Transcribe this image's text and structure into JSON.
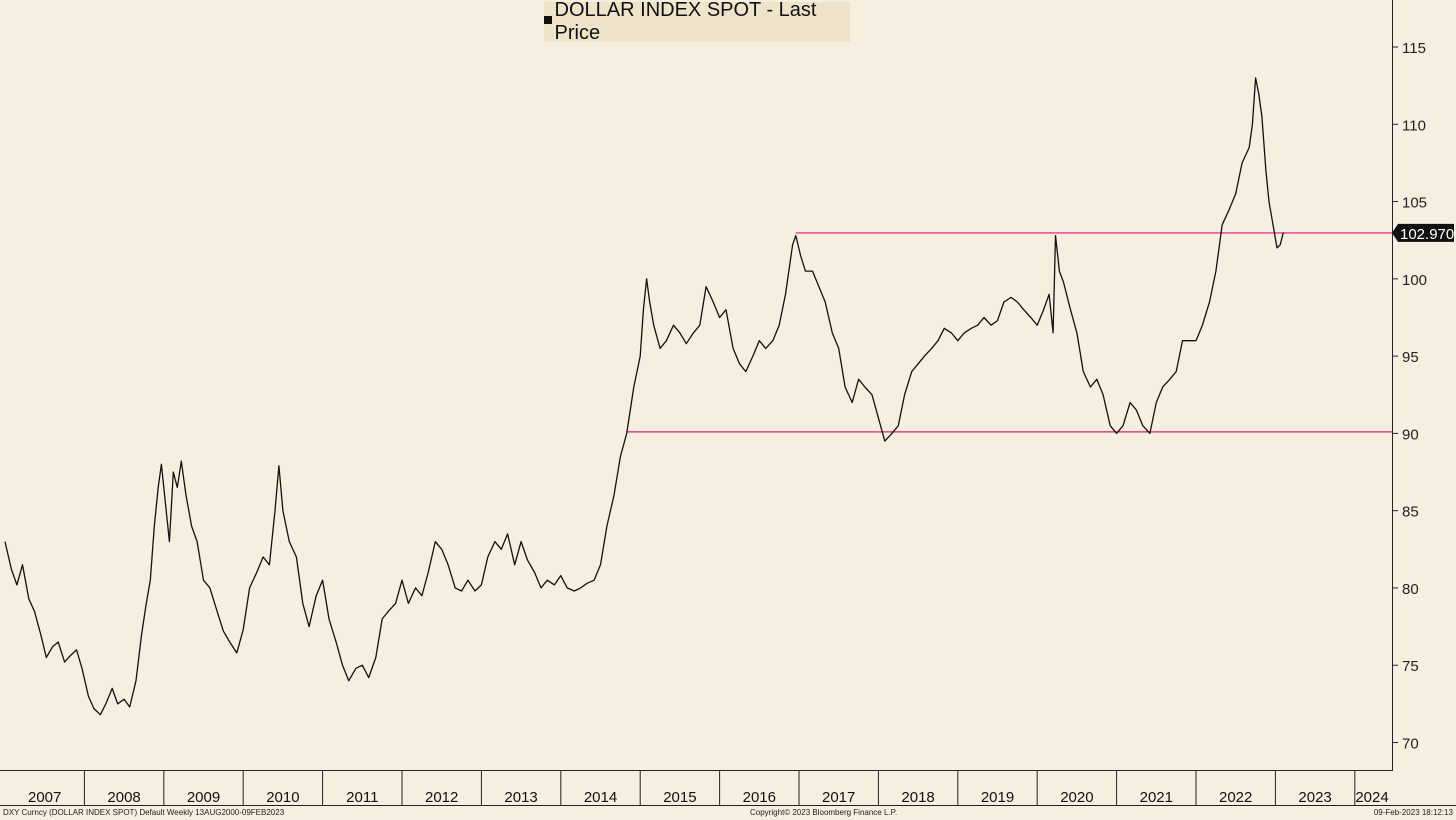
{
  "chart_data": {
    "type": "line",
    "title": "DOLLAR INDEX SPOT - Last Price",
    "legend_placement": "top-center",
    "grid": false,
    "x_categories": [
      "2007",
      "2008",
      "2009",
      "2010",
      "2011",
      "2012",
      "2013",
      "2014",
      "2015",
      "2016",
      "2017",
      "2018",
      "2019",
      "2020",
      "2021",
      "2022",
      "2023",
      "2024"
    ],
    "xlim": [
      2007.0,
      2024.6
    ],
    "ylim": [
      68.5,
      117.5
    ],
    "y_ticks": [
      70,
      75,
      80,
      85,
      90,
      95,
      100,
      105,
      110,
      115
    ],
    "last_price_label": "102.970",
    "series": [
      {
        "name": "DOLLAR INDEX SPOT",
        "color": "#111111",
        "points": [
          [
            2007.0,
            83.0
          ],
          [
            2007.08,
            81.2
          ],
          [
            2007.15,
            80.2
          ],
          [
            2007.22,
            81.5
          ],
          [
            2007.3,
            79.3
          ],
          [
            2007.37,
            78.5
          ],
          [
            2007.45,
            77.0
          ],
          [
            2007.52,
            75.5
          ],
          [
            2007.6,
            76.2
          ],
          [
            2007.67,
            76.5
          ],
          [
            2007.75,
            75.2
          ],
          [
            2007.82,
            75.6
          ],
          [
            2007.9,
            76.0
          ],
          [
            2007.97,
            74.8
          ],
          [
            2008.05,
            73.0
          ],
          [
            2008.12,
            72.2
          ],
          [
            2008.2,
            71.8
          ],
          [
            2008.27,
            72.5
          ],
          [
            2008.35,
            73.5
          ],
          [
            2008.42,
            72.5
          ],
          [
            2008.5,
            72.8
          ],
          [
            2008.57,
            72.3
          ],
          [
            2008.65,
            74.0
          ],
          [
            2008.72,
            77.0
          ],
          [
            2008.78,
            79.0
          ],
          [
            2008.83,
            80.5
          ],
          [
            2008.88,
            84.0
          ],
          [
            2008.93,
            86.5
          ],
          [
            2008.97,
            88.0
          ],
          [
            2009.02,
            85.5
          ],
          [
            2009.07,
            83.0
          ],
          [
            2009.12,
            87.5
          ],
          [
            2009.17,
            86.5
          ],
          [
            2009.22,
            88.2
          ],
          [
            2009.28,
            86.0
          ],
          [
            2009.35,
            84.0
          ],
          [
            2009.42,
            83.0
          ],
          [
            2009.5,
            80.5
          ],
          [
            2009.58,
            80.0
          ],
          [
            2009.67,
            78.5
          ],
          [
            2009.75,
            77.2
          ],
          [
            2009.83,
            76.5
          ],
          [
            2009.92,
            75.8
          ],
          [
            2010.0,
            77.3
          ],
          [
            2010.08,
            80.0
          ],
          [
            2010.17,
            81.0
          ],
          [
            2010.25,
            82.0
          ],
          [
            2010.33,
            81.5
          ],
          [
            2010.4,
            85.0
          ],
          [
            2010.45,
            87.9
          ],
          [
            2010.5,
            85.0
          ],
          [
            2010.58,
            83.0
          ],
          [
            2010.67,
            82.0
          ],
          [
            2010.75,
            79.0
          ],
          [
            2010.83,
            77.5
          ],
          [
            2010.92,
            79.5
          ],
          [
            2011.0,
            80.5
          ],
          [
            2011.08,
            78.0
          ],
          [
            2011.17,
            76.5
          ],
          [
            2011.25,
            75.0
          ],
          [
            2011.33,
            74.0
          ],
          [
            2011.42,
            74.8
          ],
          [
            2011.5,
            75.0
          ],
          [
            2011.58,
            74.2
          ],
          [
            2011.67,
            75.5
          ],
          [
            2011.75,
            78.0
          ],
          [
            2011.83,
            78.5
          ],
          [
            2011.92,
            79.0
          ],
          [
            2012.0,
            80.5
          ],
          [
            2012.08,
            79.0
          ],
          [
            2012.17,
            80.0
          ],
          [
            2012.25,
            79.5
          ],
          [
            2012.33,
            81.0
          ],
          [
            2012.42,
            83.0
          ],
          [
            2012.5,
            82.5
          ],
          [
            2012.58,
            81.5
          ],
          [
            2012.67,
            80.0
          ],
          [
            2012.75,
            79.8
          ],
          [
            2012.83,
            80.5
          ],
          [
            2012.92,
            79.8
          ],
          [
            2013.0,
            80.2
          ],
          [
            2013.08,
            82.0
          ],
          [
            2013.17,
            83.0
          ],
          [
            2013.25,
            82.5
          ],
          [
            2013.33,
            83.5
          ],
          [
            2013.42,
            81.5
          ],
          [
            2013.5,
            83.0
          ],
          [
            2013.58,
            81.8
          ],
          [
            2013.67,
            81.0
          ],
          [
            2013.75,
            80.0
          ],
          [
            2013.83,
            80.5
          ],
          [
            2013.92,
            80.2
          ],
          [
            2014.0,
            80.8
          ],
          [
            2014.08,
            80.0
          ],
          [
            2014.17,
            79.8
          ],
          [
            2014.25,
            80.0
          ],
          [
            2014.33,
            80.3
          ],
          [
            2014.42,
            80.5
          ],
          [
            2014.5,
            81.5
          ],
          [
            2014.58,
            84.0
          ],
          [
            2014.67,
            86.0
          ],
          [
            2014.75,
            88.5
          ],
          [
            2014.83,
            90.0
          ],
          [
            2014.92,
            93.0
          ],
          [
            2015.0,
            95.0
          ],
          [
            2015.04,
            98.0
          ],
          [
            2015.08,
            100.0
          ],
          [
            2015.12,
            98.5
          ],
          [
            2015.17,
            97.0
          ],
          [
            2015.25,
            95.5
          ],
          [
            2015.33,
            96.0
          ],
          [
            2015.42,
            97.0
          ],
          [
            2015.5,
            96.5
          ],
          [
            2015.58,
            95.8
          ],
          [
            2015.67,
            96.5
          ],
          [
            2015.75,
            97.0
          ],
          [
            2015.83,
            99.5
          ],
          [
            2015.92,
            98.5
          ],
          [
            2016.0,
            97.5
          ],
          [
            2016.08,
            98.0
          ],
          [
            2016.17,
            95.5
          ],
          [
            2016.25,
            94.5
          ],
          [
            2016.33,
            94.0
          ],
          [
            2016.42,
            95.0
          ],
          [
            2016.5,
            96.0
          ],
          [
            2016.58,
            95.5
          ],
          [
            2016.67,
            96.0
          ],
          [
            2016.75,
            97.0
          ],
          [
            2016.83,
            99.0
          ],
          [
            2016.92,
            102.2
          ],
          [
            2016.96,
            102.8
          ],
          [
            2017.02,
            101.5
          ],
          [
            2017.08,
            100.5
          ],
          [
            2017.17,
            100.5
          ],
          [
            2017.25,
            99.5
          ],
          [
            2017.33,
            98.5
          ],
          [
            2017.42,
            96.5
          ],
          [
            2017.5,
            95.5
          ],
          [
            2017.58,
            93.0
          ],
          [
            2017.67,
            92.0
          ],
          [
            2017.75,
            93.5
          ],
          [
            2017.83,
            93.0
          ],
          [
            2017.92,
            92.5
          ],
          [
            2018.0,
            91.0
          ],
          [
            2018.08,
            89.5
          ],
          [
            2018.17,
            90.0
          ],
          [
            2018.25,
            90.5
          ],
          [
            2018.33,
            92.5
          ],
          [
            2018.42,
            94.0
          ],
          [
            2018.5,
            94.5
          ],
          [
            2018.58,
            95.0
          ],
          [
            2018.67,
            95.5
          ],
          [
            2018.75,
            96.0
          ],
          [
            2018.83,
            96.8
          ],
          [
            2018.92,
            96.5
          ],
          [
            2019.0,
            96.0
          ],
          [
            2019.08,
            96.5
          ],
          [
            2019.17,
            96.8
          ],
          [
            2019.25,
            97.0
          ],
          [
            2019.33,
            97.5
          ],
          [
            2019.42,
            97.0
          ],
          [
            2019.5,
            97.3
          ],
          [
            2019.58,
            98.5
          ],
          [
            2019.67,
            98.8
          ],
          [
            2019.75,
            98.5
          ],
          [
            2019.83,
            98.0
          ],
          [
            2019.92,
            97.5
          ],
          [
            2020.0,
            97.0
          ],
          [
            2020.08,
            98.0
          ],
          [
            2020.15,
            99.0
          ],
          [
            2020.2,
            96.5
          ],
          [
            2020.23,
            102.8
          ],
          [
            2020.28,
            100.5
          ],
          [
            2020.33,
            99.8
          ],
          [
            2020.42,
            98.0
          ],
          [
            2020.5,
            96.5
          ],
          [
            2020.58,
            94.0
          ],
          [
            2020.67,
            93.0
          ],
          [
            2020.75,
            93.5
          ],
          [
            2020.83,
            92.5
          ],
          [
            2020.92,
            90.5
          ],
          [
            2021.0,
            90.0
          ],
          [
            2021.08,
            90.5
          ],
          [
            2021.17,
            92.0
          ],
          [
            2021.25,
            91.5
          ],
          [
            2021.33,
            90.5
          ],
          [
            2021.42,
            90.0
          ],
          [
            2021.5,
            92.0
          ],
          [
            2021.58,
            93.0
          ],
          [
            2021.67,
            93.5
          ],
          [
            2021.75,
            94.0
          ],
          [
            2021.83,
            96.0
          ],
          [
            2021.92,
            96.0
          ],
          [
            2022.0,
            96.0
          ],
          [
            2022.08,
            97.0
          ],
          [
            2022.17,
            98.5
          ],
          [
            2022.25,
            100.5
          ],
          [
            2022.33,
            103.5
          ],
          [
            2022.42,
            104.5
          ],
          [
            2022.5,
            105.5
          ],
          [
            2022.58,
            107.5
          ],
          [
            2022.67,
            108.5
          ],
          [
            2022.71,
            110.0
          ],
          [
            2022.75,
            113.0
          ],
          [
            2022.79,
            112.0
          ],
          [
            2022.83,
            110.5
          ],
          [
            2022.88,
            107.0
          ],
          [
            2022.92,
            105.0
          ],
          [
            2022.97,
            103.5
          ],
          [
            2023.02,
            102.0
          ],
          [
            2023.06,
            102.2
          ],
          [
            2023.1,
            103.0
          ]
        ]
      }
    ],
    "reference_lines": [
      {
        "y": 102.97,
        "x_start": 2016.96,
        "x_end": 2024.6,
        "color": "#d81b7a"
      },
      {
        "y": 90.1,
        "x_start": 2014.83,
        "x_end": 2024.6,
        "color": "#d81b7a"
      }
    ]
  },
  "footer": {
    "left": "DXY Curncy (DOLLAR INDEX SPOT) Default  Weekly 13AUG2000-09FEB2023",
    "center": "Copyright© 2023 Bloomberg Finance L.P.",
    "right": "09-Feb-2023 18:12:13"
  },
  "colors": {
    "background": "#f6eedf",
    "line": "#111111",
    "reference": "#d81b7a",
    "legend_bg": "#efe3c9",
    "price_tag_bg": "#111111",
    "price_tag_text": "#ffffff"
  }
}
